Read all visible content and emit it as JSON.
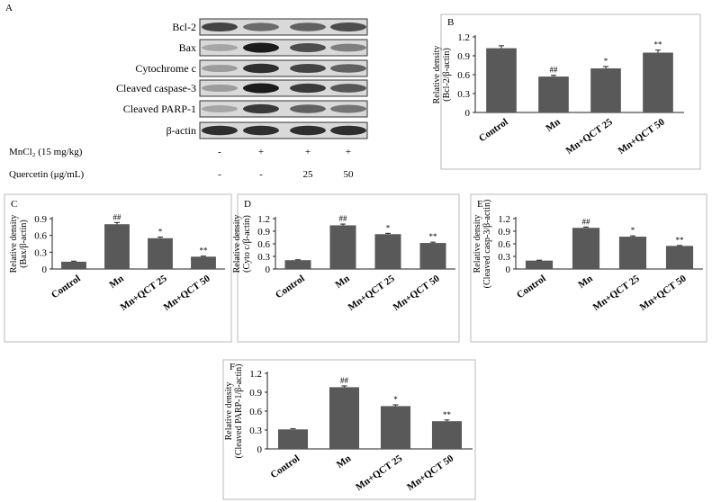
{
  "figure": {
    "panel_a_letter": "A",
    "blot_labels": [
      "Bcl-2",
      "Bax",
      "Cytochrome c",
      "Cleaved caspase-3",
      "Cleaved PARP-1",
      "β-actin"
    ],
    "conditions": [
      {
        "label": "MnCl₂ (15 mg/kg)",
        "values": [
          "-",
          "+",
          "+",
          "+"
        ]
      },
      {
        "label": "Quercetin (μg/mL)",
        "values": [
          "-",
          "-",
          "25",
          "50"
        ]
      }
    ]
  },
  "chart_data": [
    {
      "panel": "B",
      "type": "bar",
      "categories": [
        "Control",
        "Mn",
        "Mn+QCT 25",
        "Mn+QCT 50"
      ],
      "values": [
        1.02,
        0.57,
        0.7,
        0.95
      ],
      "errors": [
        0.04,
        0.02,
        0.03,
        0.04
      ],
      "significance": [
        "",
        "##",
        "*",
        "**"
      ],
      "ylabel": [
        "Relative density",
        "(Bcl-2/β-actin)"
      ],
      "ylim": [
        0,
        1.2
      ],
      "yticks": [
        "0",
        "0.3",
        "0.6",
        "0.9",
        "1.2"
      ],
      "bar_color": "#595959"
    },
    {
      "panel": "C",
      "type": "bar",
      "categories": [
        "Control",
        "Mn",
        "Mn+QCT 25",
        "Mn+QCT 50"
      ],
      "values": [
        0.13,
        0.8,
        0.55,
        0.22
      ],
      "errors": [
        0.01,
        0.03,
        0.02,
        0.01
      ],
      "significance": [
        "",
        "##",
        "*",
        "**"
      ],
      "ylabel": [
        "Relative density",
        "(Bax/β-actin)"
      ],
      "ylim": [
        0,
        0.9
      ],
      "yticks": [
        "0",
        "0.3",
        "0.6",
        "0.9"
      ],
      "bar_color": "#595959"
    },
    {
      "panel": "D",
      "type": "bar",
      "categories": [
        "Control",
        "Mn",
        "Mn+QCT 25",
        "Mn+QCT 50"
      ],
      "values": [
        0.21,
        1.04,
        0.83,
        0.62
      ],
      "errors": [
        0.01,
        0.03,
        0.02,
        0.02
      ],
      "significance": [
        "",
        "##",
        "*",
        "**"
      ],
      "ylabel": [
        "Relative density",
        "(Cyto c/β-actin)"
      ],
      "ylim": [
        0,
        1.2
      ],
      "yticks": [
        "0",
        "0.3",
        "0.6",
        "0.9",
        "1.2"
      ],
      "bar_color": "#595959"
    },
    {
      "panel": "E",
      "type": "bar",
      "categories": [
        "Control",
        "Mn",
        "Mn+QCT 25",
        "Mn+QCT 50"
      ],
      "values": [
        0.2,
        0.98,
        0.77,
        0.55
      ],
      "errors": [
        0.01,
        0.02,
        0.02,
        0.01
      ],
      "significance": [
        "",
        "##",
        "*",
        "**"
      ],
      "ylabel": [
        "Relative density",
        "(Cleaved casp-3/β-actin)"
      ],
      "ylim": [
        0,
        1.2
      ],
      "yticks": [
        "0",
        "0.3",
        "0.6",
        "0.9",
        "1.2"
      ],
      "bar_color": "#595959"
    },
    {
      "panel": "F",
      "type": "bar",
      "categories": [
        "Control",
        "Mn",
        "Mn+QCT 25",
        "Mn+QCT 50"
      ],
      "values": [
        0.31,
        0.98,
        0.68,
        0.44
      ],
      "errors": [
        0.01,
        0.02,
        0.02,
        0.02
      ],
      "significance": [
        "",
        "##",
        "*",
        "**"
      ],
      "ylabel": [
        "Relative density",
        "(Cleaved PARP-1/β-actin)"
      ],
      "ylim": [
        0,
        1.2
      ],
      "yticks": [
        "0",
        "0.3",
        "0.6",
        "0.9",
        "1.2"
      ],
      "bar_color": "#595959"
    }
  ]
}
